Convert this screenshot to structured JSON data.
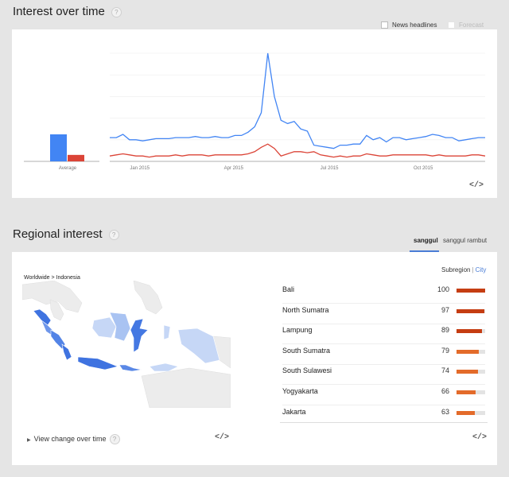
{
  "interest": {
    "title": "Interest over time",
    "help": "?",
    "news_label": "News headlines",
    "forecast_label": "Forecast",
    "average_label": "Average",
    "embed": "</>"
  },
  "chart_data": {
    "type": "line",
    "x_tick_labels": [
      "Jan 2015",
      "Apr 2015",
      "Jul 2015",
      "Oct 2015"
    ],
    "ylim": [
      0,
      100
    ],
    "grid": true,
    "series": [
      {
        "values": [
          22,
          22,
          25,
          20,
          20,
          19,
          20,
          21,
          21,
          21,
          22,
          22,
          22,
          23,
          22,
          22,
          23,
          22,
          22,
          24,
          24,
          27,
          32,
          45,
          100,
          60,
          38,
          35,
          37,
          30,
          28,
          15,
          14,
          13,
          12,
          15,
          15,
          16,
          16,
          24,
          20,
          22,
          18,
          22,
          22,
          20,
          21,
          22,
          23,
          25,
          24,
          22,
          22,
          19,
          20,
          21,
          22,
          22
        ],
        "color": "#4285f4"
      },
      {
        "values": [
          5,
          6,
          7,
          6,
          5,
          5,
          4,
          5,
          5,
          5,
          6,
          5,
          6,
          6,
          6,
          5,
          6,
          6,
          6,
          6,
          6,
          7,
          9,
          13,
          16,
          12,
          5,
          7,
          9,
          9,
          8,
          9,
          6,
          5,
          4,
          5,
          4,
          5,
          5,
          7,
          6,
          5,
          5,
          6,
          6,
          6,
          6,
          6,
          6,
          5,
          6,
          5,
          5,
          5,
          5,
          6,
          6,
          5
        ],
        "color": "#db4437"
      }
    ],
    "average": [
      {
        "value": 25,
        "color": "#4285f4"
      },
      {
        "value": 6,
        "color": "#db4437"
      }
    ]
  },
  "regional": {
    "title": "Regional interest",
    "help": "?",
    "tabs": [
      {
        "label": "sanggul",
        "active": true
      },
      {
        "label": "sanggul rambut",
        "active": false
      }
    ],
    "breadcrumb": "Worldwide > Indonesia",
    "subregion": "Subregion",
    "city": "City",
    "view_change": "View change over time",
    "embed": "</>",
    "rows": [
      {
        "name": "Bali",
        "value": 100,
        "fraction": 1.0,
        "color": "#c53d12"
      },
      {
        "name": "North Sumatra",
        "value": 97,
        "fraction": 0.97,
        "color": "#c53d12"
      },
      {
        "name": "Lampung",
        "value": 89,
        "fraction": 0.89,
        "color": "#c53d12"
      },
      {
        "name": "South Sumatra",
        "value": 79,
        "fraction": 0.79,
        "color": "#e36b2a"
      },
      {
        "name": "South Sulawesi",
        "value": 74,
        "fraction": 0.74,
        "color": "#e36b2a"
      },
      {
        "name": "Yogyakarta",
        "value": 66,
        "fraction": 0.66,
        "color": "#e36b2a"
      },
      {
        "name": "Jakarta",
        "value": 63,
        "fraction": 0.63,
        "color": "#e36b2a"
      }
    ]
  }
}
